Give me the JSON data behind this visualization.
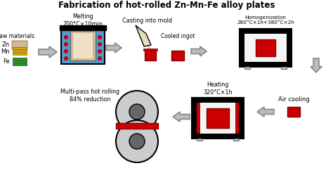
{
  "title": "Fabrication of hot-rolled Zn-Mn-Fe alloy plates",
  "bg_color": "#ffffff",
  "text_color": "#000000",
  "red": "#cc0000",
  "blue": "#5599cc",
  "light_gray": "#cccccc",
  "dark_gray": "#666666",
  "tan": "#d4b896",
  "pale_tan": "#f0e0c8",
  "gold": "#ddaa00",
  "green": "#229922",
  "arrow_fc": "#bbbbbb",
  "arrow_ec": "#888888",
  "labels": {
    "raw_materials": "Raw materials",
    "zn": "Zn",
    "mn": "Mn",
    "fe": "Fe",
    "melting": "Melting\n700°C×10min",
    "casting": "Casting into mold",
    "cooled_ingot": "Cooled ingot",
    "homogenization": "Homogenization\n280°C×1h+380°C×2h",
    "air_cooling": "Air cooling",
    "heating": "Heating\n320°C×1h",
    "multi_pass": "Multi-pass hot rolling\n84% reduction"
  }
}
